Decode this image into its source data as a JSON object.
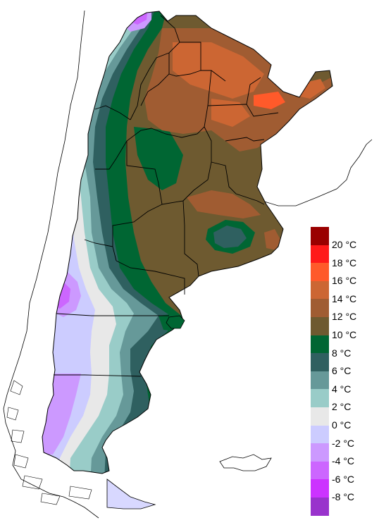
{
  "legend": {
    "items": [
      {
        "label": "20 °C",
        "color": "#9a0000"
      },
      {
        "label": "18 °C",
        "color": "#ff1a1a"
      },
      {
        "label": "16 °C",
        "color": "#ff5a2a"
      },
      {
        "label": "14 °C",
        "color": "#cc6633"
      },
      {
        "label": "12 °C",
        "color": "#a05c32"
      },
      {
        "label": "10 °C",
        "color": "#6e5a30"
      },
      {
        "label": "8 °C",
        "color": "#006633"
      },
      {
        "label": "6 °C",
        "color": "#2f6060"
      },
      {
        "label": "4 °C",
        "color": "#669999"
      },
      {
        "label": "2 °C",
        "color": "#99ccc8"
      },
      {
        "label": "0 °C",
        "color": "#e8e8e8"
      },
      {
        "label": "-2 °C",
        "color": "#ccccff"
      },
      {
        "label": "-4 °C",
        "color": "#cc99ff"
      },
      {
        "label": "-6 °C",
        "color": "#cc66ff"
      },
      {
        "label": "-8 °C",
        "color": "#cc33ff"
      },
      {
        "label": "",
        "color": "#9933cc"
      }
    ]
  }
}
